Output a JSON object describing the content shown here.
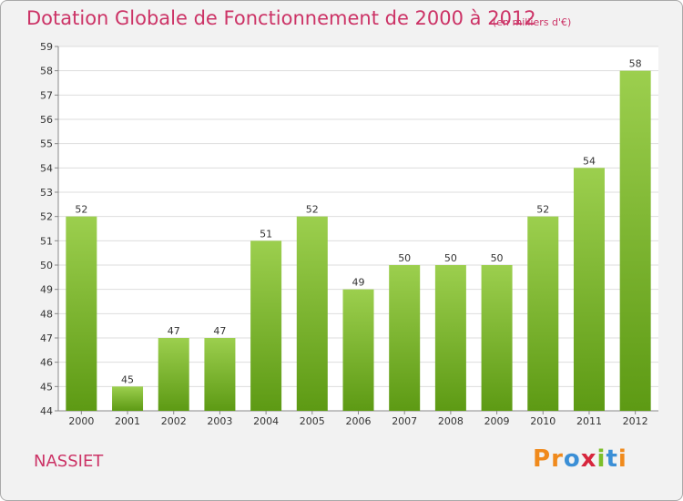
{
  "chart_data": {
    "type": "bar",
    "title": "Dotation Globale de Fonctionnement de 2000 à 2012",
    "subtitle": "(en milliers d'€)",
    "categories": [
      "2000",
      "2001",
      "2002",
      "2003",
      "2004",
      "2005",
      "2006",
      "2007",
      "2008",
      "2009",
      "2010",
      "2011",
      "2012"
    ],
    "values": [
      52,
      45,
      47,
      47,
      51,
      52,
      49,
      50,
      50,
      50,
      52,
      54,
      58
    ],
    "ylim": [
      44,
      59
    ],
    "y_ticks": [
      44,
      45,
      46,
      47,
      48,
      49,
      50,
      51,
      52,
      53,
      54,
      55,
      56,
      57,
      58,
      59
    ],
    "grid": true,
    "bar_color_top": "#9ccf4e",
    "bar_color_bottom": "#5d9a14"
  },
  "footer": {
    "town": "NASSIET",
    "logo_letters": [
      "P",
      "r",
      "o",
      "x",
      "i",
      "t",
      "i"
    ],
    "logo_colors": [
      "#f08a1c",
      "#f08a1c",
      "#3b8fd6",
      "#d7263d",
      "#7cbf2a",
      "#3b8fd6",
      "#f08a1c"
    ]
  }
}
